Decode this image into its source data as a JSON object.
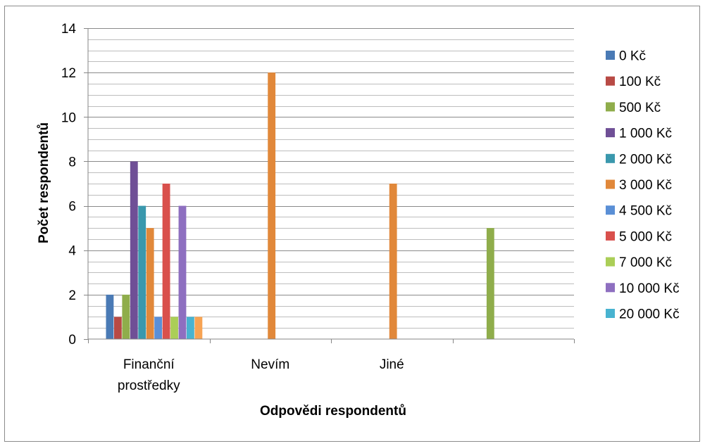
{
  "chart_data": {
    "type": "bar",
    "title": "",
    "xlabel": "Odpovědi respondentů",
    "ylabel": "Počet respondentů",
    "ylim": [
      0,
      14
    ],
    "y_major_ticks": [
      0,
      2,
      4,
      6,
      8,
      10,
      12,
      14
    ],
    "y_minor_step": 0.5,
    "grid": true,
    "legend_position": "right",
    "category_slots": 4,
    "categories": [
      {
        "lines": [
          "Finanční",
          "prostředky"
        ]
      },
      {
        "lines": [
          "Nevím"
        ]
      },
      {
        "lines": [
          "Jiné"
        ]
      },
      {
        "lines": [
          ""
        ]
      }
    ],
    "series": [
      {
        "name": "0 Kč",
        "color": "#4a7ab5",
        "values": [
          2,
          null,
          null,
          null
        ]
      },
      {
        "name": "100 Kč",
        "color": "#b84a45",
        "values": [
          1,
          null,
          null,
          null
        ]
      },
      {
        "name": "500 Kč",
        "color": "#8fad4b",
        "values": [
          2,
          null,
          null,
          5
        ]
      },
      {
        "name": "1 000 Kč",
        "color": "#6f4f96",
        "values": [
          8,
          null,
          null,
          null
        ]
      },
      {
        "name": "2 000 Kč",
        "color": "#3a98ad",
        "values": [
          6,
          null,
          null,
          null
        ]
      },
      {
        "name": "3 000 Kč",
        "color": "#e1883a",
        "values": [
          5,
          12,
          7,
          null
        ]
      },
      {
        "name": "4 500 Kč",
        "color": "#5a8fd6",
        "values": [
          1,
          null,
          null,
          null
        ]
      },
      {
        "name": "5 000 Kč",
        "color": "#d9504c",
        "values": [
          7,
          null,
          null,
          null
        ]
      },
      {
        "name": "7 000 Kč",
        "color": "#abce57",
        "values": [
          1,
          null,
          null,
          null
        ]
      },
      {
        "name": "10 000 Kč",
        "color": "#8e6fc0",
        "values": [
          6,
          null,
          null,
          null
        ]
      },
      {
        "name": "20 000 Kč",
        "color": "#48b3d0",
        "values": [
          1,
          null,
          null,
          null
        ]
      },
      {
        "name": "",
        "color": "#f7a353",
        "values": [
          1,
          null,
          null,
          null
        ]
      }
    ]
  }
}
